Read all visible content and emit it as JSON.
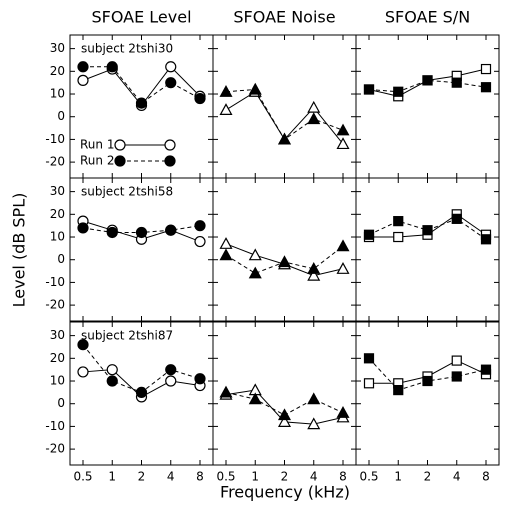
{
  "chart_data": {
    "type": "line",
    "column_titles": [
      "SFOAE Level",
      "SFOAE Noise",
      "SFOAE S/N"
    ],
    "row_labels": [
      "subject 2tshi30",
      "subject 2tshi58",
      "subject 2tshi87"
    ],
    "x_label": "Frequency (kHz)",
    "y_label": "Level (dB SPL)",
    "categories": [
      "0.5",
      "1",
      "2",
      "4",
      "8"
    ],
    "ylim": [
      -27,
      36
    ],
    "yticks": [
      -20,
      -10,
      0,
      10,
      20,
      30
    ],
    "markers": [
      "circle",
      "triangle",
      "square"
    ],
    "color": "#000000",
    "legend": {
      "position": "lower left",
      "entries": [
        {
          "name": "Run 1",
          "line": "solid",
          "fill": "open"
        },
        {
          "name": "Run 2",
          "line": "dashed",
          "fill": "filled"
        }
      ]
    },
    "panels": [
      [
        {
          "series": [
            {
              "values": [
                16,
                21,
                5,
                22,
                9
              ]
            },
            {
              "values": [
                22,
                22,
                6,
                15,
                8
              ]
            }
          ]
        },
        {
          "series": [
            {
              "values": [
                3,
                11,
                -10,
                4,
                -12
              ]
            },
            {
              "values": [
                11,
                12,
                -10,
                -1,
                -6
              ]
            }
          ]
        },
        {
          "series": [
            {
              "values": [
                12,
                9,
                16,
                18,
                21
              ]
            },
            {
              "values": [
                12,
                11,
                16,
                15,
                13
              ]
            }
          ]
        }
      ],
      [
        {
          "series": [
            {
              "values": [
                17,
                13,
                9,
                13,
                8
              ]
            },
            {
              "values": [
                14,
                12,
                12,
                13,
                15
              ]
            }
          ]
        },
        {
          "series": [
            {
              "values": [
                7,
                2,
                -2,
                -7,
                -4
              ]
            },
            {
              "values": [
                2,
                -6,
                -1,
                -4,
                6
              ]
            }
          ]
        },
        {
          "series": [
            {
              "values": [
                10,
                10,
                11,
                20,
                11
              ]
            },
            {
              "values": [
                11,
                17,
                13,
                18,
                9
              ]
            }
          ]
        }
      ],
      [
        {
          "series": [
            {
              "values": [
                14,
                15,
                3,
                10,
                8
              ]
            },
            {
              "values": [
                26,
                10,
                5,
                15,
                11
              ]
            }
          ]
        },
        {
          "series": [
            {
              "values": [
                4,
                6,
                -8,
                -9,
                -6
              ]
            },
            {
              "values": [
                5,
                2,
                -5,
                2,
                -4
              ]
            }
          ]
        },
        {
          "series": [
            {
              "values": [
                9,
                9,
                12,
                19,
                13
              ]
            },
            {
              "values": [
                20,
                6,
                10,
                12,
                15
              ]
            }
          ]
        }
      ]
    ]
  }
}
